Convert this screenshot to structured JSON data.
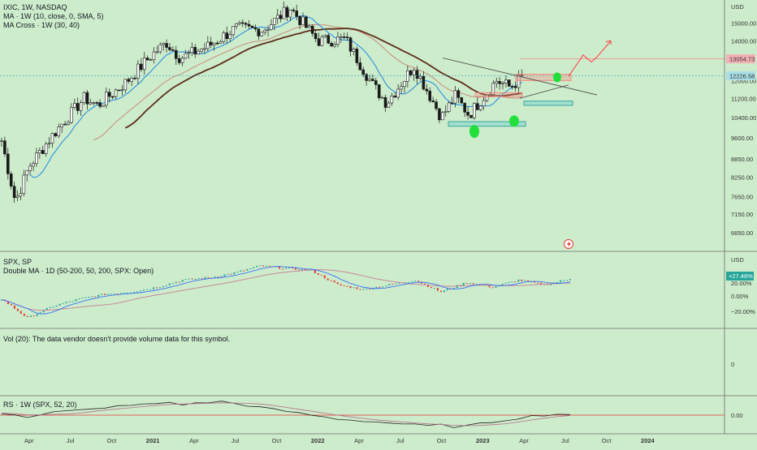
{
  "colors": {
    "background": "#cdeccb",
    "up_candle": "#26a69a",
    "down_candle": "#1a1a1a",
    "ma10": "#1e88e5",
    "ma30": "#c98b7b",
    "ma40": "#5d2e1a",
    "resistance_box": "#f28b82",
    "support_box": "#7fd6d0",
    "green_marker": "#21e03c",
    "forecast_arrow": "#ff3344",
    "divider": "#6d6d6d",
    "spx_ma_slow": "#c8899c",
    "spx_ma_fast": "#2962ff"
  },
  "main_pane": {
    "symbol_line": "IXIC, 1W, NASDAQ",
    "indicator_1": "MA · 1W (10, close, 0, SMA, 5)",
    "indicator_2": "MA Cross · 1W (30, 40)",
    "currency": "USD",
    "price_ticks": [
      "15000.00",
      "14000.00",
      "12000.00",
      "11200.00",
      "10400.00",
      "9600.00",
      "8850.00",
      "8250.00",
      "7650.00",
      "7150.00",
      "6650.00"
    ],
    "badge_high": "13054.73",
    "badge_last": "12226.58",
    "flash_icon": "lightning-icon"
  },
  "spx_pane": {
    "title": "SPX, SP",
    "indicator": "Double MA · 1D (50-200, 50, 200, SPX: Open)",
    "currency": "USD",
    "badge": "+27.46%",
    "ticks": [
      "20.00%",
      "0.00%",
      "−20.00%"
    ]
  },
  "vol_pane": {
    "message": "Vol (20): The data vendor doesn't provide volume data for this symbol.",
    "tick": "0"
  },
  "rs_pane": {
    "title": "RS · 1W (SPX, 52, 20)",
    "tick": "0.00"
  },
  "time_axis": {
    "labels": [
      "Apr",
      "Jul",
      "Oct",
      "2021",
      "Apr",
      "Jul",
      "Oct",
      "2022",
      "Apr",
      "Jul",
      "Oct",
      "2023",
      "Apr",
      "Jul",
      "Oct",
      "2024"
    ]
  },
  "chart_data": [
    {
      "type": "candlestick",
      "title": "IXIC, 1W, NASDAQ",
      "ylabel": "USD",
      "ylim": [
        6300,
        15800
      ],
      "y_scale": "log",
      "x_range": [
        "2020-02",
        "2024-06"
      ],
      "series_close": [
        {
          "date": "2020-02",
          "value": 9500
        },
        {
          "date": "2020-03",
          "value": 7500
        },
        {
          "date": "2020-04",
          "value": 8600
        },
        {
          "date": "2020-06",
          "value": 9900
        },
        {
          "date": "2020-08",
          "value": 11200
        },
        {
          "date": "2020-09",
          "value": 10900
        },
        {
          "date": "2020-11",
          "value": 11900
        },
        {
          "date": "2021-01",
          "value": 13300
        },
        {
          "date": "2021-02",
          "value": 13900
        },
        {
          "date": "2021-03",
          "value": 13100
        },
        {
          "date": "2021-05",
          "value": 13700
        },
        {
          "date": "2021-07",
          "value": 14700
        },
        {
          "date": "2021-09",
          "value": 14600
        },
        {
          "date": "2021-11",
          "value": 15900
        },
        {
          "date": "2022-01",
          "value": 14000
        },
        {
          "date": "2022-03",
          "value": 14100
        },
        {
          "date": "2022-05",
          "value": 11800
        },
        {
          "date": "2022-06",
          "value": 11000
        },
        {
          "date": "2022-08",
          "value": 12700
        },
        {
          "date": "2022-10",
          "value": 10400
        },
        {
          "date": "2022-11",
          "value": 11300
        },
        {
          "date": "2022-12",
          "value": 10500
        },
        {
          "date": "2023-02",
          "value": 12000
        },
        {
          "date": "2023-03",
          "value": 11700
        },
        {
          "date": "2023-04",
          "value": 12226.58
        }
      ],
      "annotations": {
        "resistance_levels": [
          13054.73,
          12226.58,
          11400
        ],
        "support_levels": [
          10150,
          11000
        ],
        "forecast": "upward arrow toward 14000"
      }
    },
    {
      "type": "line",
      "title": "SPX, SP",
      "ylabel": "USD",
      "series": [
        {
          "name": "SPX",
          "values": [
            3300,
            2500,
            3000,
            3300,
            3500,
            3600,
            3800,
            4100,
            4200,
            4400,
            4700,
            4600,
            4500,
            3900,
            3700,
            3900,
            4100,
            3600,
            4000,
            3800,
            4100,
            3900,
            4150
          ]
        }
      ]
    }
  ]
}
